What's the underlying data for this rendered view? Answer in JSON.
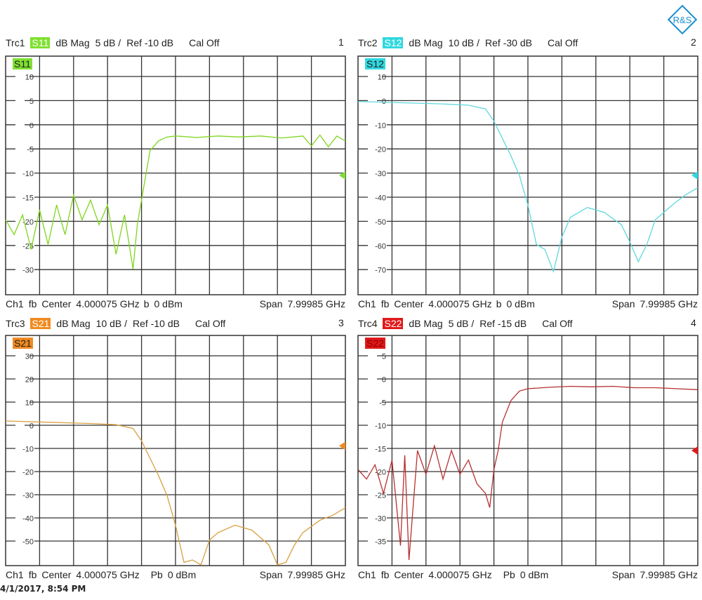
{
  "logo": {
    "text": "R&S",
    "color": "#1a8fd0"
  },
  "timestamp": "4/1/2017, 8:54 PM",
  "panels": [
    {
      "trace": "Trc1",
      "param": "S11",
      "format": "dB Mag",
      "scale": "5 dB /",
      "ref": "Ref -10 dB",
      "cal": "Cal Off",
      "number": "1",
      "color": "#7fd61c",
      "badge_color": "#7fe030",
      "footer": {
        "ch": "Ch1",
        "fb": "fb",
        "center_label": "Center",
        "center": "4.000075 GHz",
        "src": "b",
        "power": "0 dBm",
        "span_label": "Span",
        "span": "7.99985 GHz"
      },
      "ticks": [
        "10",
        "5",
        "0",
        "-5",
        "-10",
        "-15",
        "-20",
        "-25",
        "-30"
      ]
    },
    {
      "trace": "Trc2",
      "param": "S12",
      "format": "dB Mag",
      "scale": "10 dB /",
      "ref": "Ref -30 dB",
      "cal": "Cal Off",
      "number": "2",
      "color": "#5fd8dc",
      "badge_color": "#30d8e0",
      "footer": {
        "ch": "Ch1",
        "fb": "fb",
        "center_label": "Center",
        "center": "4.000075 GHz",
        "src": "b",
        "power": "0 dBm",
        "span_label": "Span",
        "span": "7.99985 GHz"
      },
      "ticks": [
        "10",
        "0",
        "-10",
        "-20",
        "-30",
        "-40",
        "-50",
        "-60",
        "-70"
      ]
    },
    {
      "trace": "Trc3",
      "param": "S21",
      "format": "dB Mag",
      "scale": "10 dB /",
      "ref": "Ref -10 dB",
      "cal": "Cal Off",
      "number": "3",
      "color": "#d8a040",
      "badge_color": "#f08a20",
      "footer": {
        "ch": "Ch1",
        "fb": "fb",
        "center_label": "Center",
        "center": "4.000075 GHz",
        "src": "Pb",
        "power": "0 dBm",
        "span_label": "Span",
        "span": "7.99985 GHz"
      },
      "ticks": [
        "30",
        "20",
        "10",
        "0",
        "-10",
        "-20",
        "-30",
        "-40",
        "-50"
      ]
    },
    {
      "trace": "Trc4",
      "param": "S22",
      "format": "dB Mag",
      "scale": "5 dB /",
      "ref": "Ref -15 dB",
      "cal": "Cal Off",
      "number": "4",
      "color": "#b83030",
      "badge_color": "#e01818",
      "footer": {
        "ch": "Ch1",
        "fb": "fb",
        "center_label": "Center",
        "center": "4.000075 GHz",
        "src": "Pb",
        "power": "0 dBm",
        "span_label": "Span",
        "span": "7.99985 GHz"
      },
      "ticks": [
        "5",
        "0",
        "-5",
        "-10",
        "-15",
        "-20",
        "-25",
        "-30",
        "-35"
      ]
    }
  ],
  "chart_data": [
    {
      "type": "line",
      "title": "Trc1 S11 dB Mag 5 dB / Ref -10 dB",
      "xlabel": "Center 4.000075 GHz, Span 7.99985 GHz",
      "ylabel": "dB",
      "xlim": [
        7.5e-05,
        8.000075
      ],
      "ylim": [
        -34.2,
        14.2
      ],
      "ref_level": -10,
      "grid": true,
      "x": [
        0.0,
        0.2,
        0.4,
        0.6,
        0.8,
        1.0,
        1.2,
        1.4,
        1.6,
        1.8,
        2.0,
        2.2,
        2.4,
        2.6,
        2.8,
        3.0,
        3.1,
        3.2,
        3.3,
        3.4,
        3.6,
        3.8,
        4.0,
        4.5,
        5.0,
        5.5,
        6.0,
        6.5,
        7.0,
        7.2,
        7.4,
        7.6,
        7.8,
        8.0
      ],
      "values": [
        -19,
        -22,
        -18,
        -25,
        -17,
        -24,
        -16,
        -22,
        -14,
        -19,
        -15,
        -20,
        -16,
        -26,
        -18,
        -29,
        -20,
        -15,
        -10,
        -5,
        -3,
        -2.2,
        -2.0,
        -2.3,
        -2.0,
        -2.2,
        -2.0,
        -2.4,
        -2.0,
        -4.0,
        -1.8,
        -4.2,
        -2.0,
        -3.0
      ]
    },
    {
      "type": "line",
      "title": "Trc2 S12 dB Mag 10 dB / Ref -30 dB",
      "xlabel": "Center 4.000075 GHz, Span 7.99985 GHz",
      "ylabel": "dB",
      "xlim": [
        7.5e-05,
        8.000075
      ],
      "ylim": [
        -78.4,
        18.4
      ],
      "ref_level": -30,
      "grid": true,
      "x": [
        0.0,
        1.0,
        2.0,
        2.6,
        3.0,
        3.2,
        3.4,
        3.6,
        3.8,
        4.0,
        4.2,
        4.4,
        4.6,
        4.8,
        5.0,
        5.4,
        5.8,
        6.2,
        6.4,
        6.6,
        6.8,
        7.0,
        7.4,
        7.7,
        8.0
      ],
      "values": [
        0,
        -0.5,
        -1,
        -1.5,
        -3,
        -8,
        -15,
        -22,
        -30,
        -42,
        -58,
        -60,
        -69,
        -55,
        -47,
        -43,
        -45,
        -50,
        -57,
        -65,
        -58,
        -48,
        -42,
        -38,
        -35
      ]
    },
    {
      "type": "line",
      "title": "Trc3 S21 dB Mag 10 dB / Ref -10 dB",
      "xlabel": "Center 4.000075 GHz, Span 7.99985 GHz",
      "ylabel": "dB",
      "xlim": [
        7.5e-05,
        8.000075
      ],
      "ylim": [
        -58.3,
        34.5
      ],
      "ref_level": -10,
      "grid": true,
      "x": [
        0.0,
        1.0,
        2.0,
        2.6,
        3.0,
        3.2,
        3.4,
        3.6,
        3.8,
        4.0,
        4.2,
        4.4,
        4.6,
        4.8,
        5.0,
        5.4,
        5.8,
        6.2,
        6.4,
        6.6,
        6.8,
        7.0,
        7.4,
        7.7,
        8.0
      ],
      "values": [
        0,
        -0.5,
        -1,
        -1.5,
        -3,
        -8,
        -15,
        -22,
        -30,
        -42,
        -57,
        -56,
        -58,
        -48,
        -45,
        -42,
        -44,
        -50,
        -58,
        -57,
        -50,
        -45,
        -40,
        -38,
        -35
      ]
    },
    {
      "type": "line",
      "title": "Trc4 S22 dB Mag 5 dB / Ref -15 dB",
      "xlabel": "Center 4.000075 GHz, Span 7.99985 GHz",
      "ylabel": "dB",
      "xlim": [
        7.5e-05,
        8.000075
      ],
      "ylim": [
        -39.2,
        9.2
      ],
      "ref_level": -15,
      "grid": true,
      "x": [
        0.0,
        0.2,
        0.4,
        0.6,
        0.8,
        1.0,
        1.1,
        1.2,
        1.4,
        1.6,
        1.8,
        2.0,
        2.2,
        2.4,
        2.6,
        2.8,
        3.0,
        3.1,
        3.2,
        3.3,
        3.4,
        3.6,
        3.8,
        4.0,
        4.5,
        5.0,
        5.5,
        6.0,
        6.5,
        7.0,
        7.5,
        8.0
      ],
      "values": [
        -19,
        -21,
        -18,
        -24,
        -17,
        -35,
        -16,
        -38,
        -15,
        -20,
        -14,
        -21,
        -15,
        -20,
        -17,
        -22,
        -24,
        -27,
        -19,
        -15,
        -9,
        -4.5,
        -2.5,
        -2.0,
        -1.7,
        -1.5,
        -1.6,
        -1.5,
        -1.8,
        -1.8,
        -2.0,
        -2.2
      ]
    }
  ]
}
